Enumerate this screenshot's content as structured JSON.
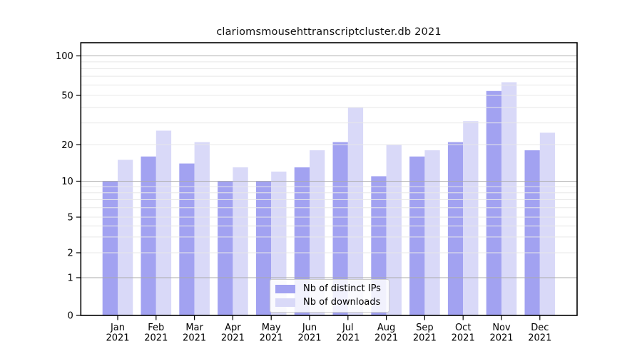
{
  "title": "clariomsmousehttranscriptcluster.db 2021",
  "legend": {
    "items": [
      {
        "label": "Nb of distinct IPs"
      },
      {
        "label": "Nb of downloads"
      }
    ]
  },
  "colors": {
    "distinct_ips": "#a2a2f1",
    "downloads": "#d9d9f8",
    "grid_major": "#ababab",
    "grid_minor": "#e8e8e8",
    "axis": "#000000",
    "text": "#000000",
    "legend_border": "#cccccc"
  },
  "chart_data": {
    "type": "bar",
    "title": "clariomsmousehttranscriptcluster.db 2021",
    "categories": [
      "Jan",
      "Feb",
      "Mar",
      "Apr",
      "May",
      "Jun",
      "Jul",
      "Aug",
      "Sep",
      "Oct",
      "Nov",
      "Dec"
    ],
    "year": "2021",
    "series": [
      {
        "name": "Nb of distinct IPs",
        "values": [
          10,
          16,
          14,
          10,
          10,
          13,
          21,
          11,
          16,
          21,
          54,
          18
        ]
      },
      {
        "name": "Nb of downloads",
        "values": [
          15,
          26,
          21,
          13,
          12,
          18,
          40,
          20,
          18,
          31,
          63,
          25
        ]
      }
    ],
    "y_ticks": [
      0,
      1,
      2,
      5,
      10,
      20,
      50,
      100
    ],
    "y_major_gridlines": [
      1,
      10,
      100
    ],
    "y_minor_gridlines": [
      3,
      4,
      6,
      7,
      8,
      9,
      30,
      40,
      60,
      70,
      80,
      90
    ],
    "yscale": "log-like (custom, 0 at baseline)",
    "ylim": [
      0,
      130
    ],
    "xlabel": "",
    "ylabel": "",
    "legend_entries": [
      "Nb of distinct IPs",
      "Nb of downloads"
    ],
    "legend_position": "lower center",
    "grid": "horizontal gridlines drawn above bars"
  }
}
